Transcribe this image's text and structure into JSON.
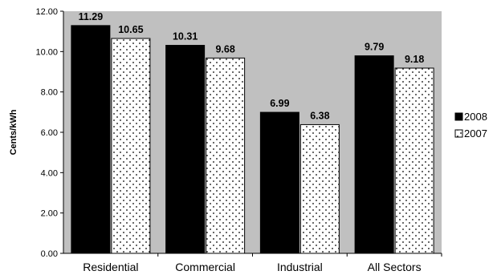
{
  "chart_data": {
    "type": "bar",
    "title": "",
    "xlabel": "",
    "ylabel": "Cents/kWh",
    "categories": [
      "Residential",
      "Commercial",
      "Industrial",
      "All Sectors"
    ],
    "series": [
      {
        "name": "2008",
        "values": [
          11.29,
          10.31,
          6.99,
          9.79
        ],
        "labels": [
          "11.29",
          "10.31",
          "6.99",
          "9.79"
        ],
        "fill": "solid",
        "color": "#000000"
      },
      {
        "name": "2007",
        "values": [
          10.65,
          9.68,
          6.38,
          9.18
        ],
        "labels": [
          "10.65",
          "9.68",
          "6.38",
          "9.18"
        ],
        "fill": "dotted",
        "color": "#ffffff"
      }
    ],
    "ylim": [
      0,
      12
    ],
    "yticks": [
      "0.00",
      "2.00",
      "4.00",
      "6.00",
      "8.00",
      "10.00",
      "12.00"
    ],
    "ytick_values": [
      0,
      2,
      4,
      6,
      8,
      10,
      12
    ],
    "grid": false,
    "legend": "right",
    "plot_background": "#c0c0c0"
  }
}
